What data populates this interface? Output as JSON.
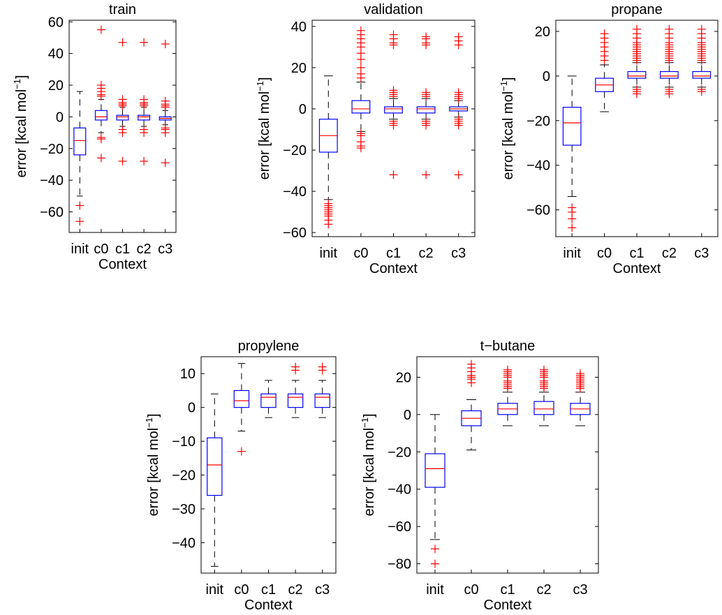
{
  "chart_data": [
    {
      "type": "boxplot",
      "title": "train",
      "xlabel": "Context",
      "ylabel": "error [kcal mol",
      "ylabel_superscript": "−1",
      "ylabel_suffix": "]",
      "categories": [
        "init",
        "c0",
        "c1",
        "c2",
        "c3"
      ],
      "ylim": [
        -73,
        61
      ],
      "yticks": [
        -60,
        -40,
        -20,
        0,
        20,
        40,
        60
      ],
      "ytick_labels": [
        "−60",
        "−40",
        "−20",
        "0",
        "20",
        "40",
        "60"
      ],
      "boxes": [
        {
          "q1": -24,
          "median": -15,
          "q3": -7,
          "whisker_low": -50,
          "whisker_high": 16,
          "outliers": [
            -56,
            -66
          ]
        },
        {
          "q1": -2,
          "median": 0,
          "q3": 4,
          "whisker_low": -10,
          "whisker_high": 11,
          "outliers": [
            55,
            20,
            18,
            16,
            14,
            13,
            -13,
            -14,
            -26
          ]
        },
        {
          "q1": -2,
          "median": 0,
          "q3": 1,
          "whisker_low": -6,
          "whisker_high": 6,
          "outliers": [
            47,
            11,
            9,
            8,
            7,
            -8,
            -10,
            -28
          ]
        },
        {
          "q1": -2,
          "median": 0,
          "q3": 1,
          "whisker_low": -6,
          "whisker_high": 6,
          "outliers": [
            47,
            11,
            9,
            8,
            7,
            -8,
            -10,
            -28
          ]
        },
        {
          "q1": -2,
          "median": -1,
          "q3": 0,
          "whisker_low": -5,
          "whisker_high": 4,
          "outliers": [
            46,
            10,
            8,
            7,
            6,
            -7,
            -8,
            -10,
            -29
          ]
        }
      ]
    },
    {
      "type": "boxplot",
      "title": "validation",
      "xlabel": "Context",
      "ylabel": "error [kcal mol",
      "ylabel_superscript": "−1",
      "ylabel_suffix": "]",
      "categories": [
        "init",
        "c0",
        "c1",
        "c2",
        "c3"
      ],
      "ylim": [
        -62,
        43
      ],
      "yticks": [
        -60,
        -40,
        -20,
        0,
        20,
        40
      ],
      "ytick_labels": [
        "−60",
        "−40",
        "−20",
        "0",
        "20",
        "40"
      ],
      "boxes": [
        {
          "q1": -21,
          "median": -13,
          "q3": -5,
          "whisker_low": -44,
          "whisker_high": 16,
          "outliers": [
            -46,
            -47,
            -48,
            -49,
            -50,
            -51,
            -52,
            -54,
            -56
          ]
        },
        {
          "q1": -2,
          "median": 0,
          "q3": 4,
          "whisker_low": -11,
          "whisker_high": 13,
          "outliers": [
            38,
            36,
            34,
            32,
            30,
            27,
            24,
            20,
            17,
            15,
            -12,
            -13,
            -16,
            -18,
            -19
          ]
        },
        {
          "q1": -2,
          "median": 0,
          "q3": 1,
          "whisker_low": -5,
          "whisker_high": 5,
          "outliers": [
            36,
            34,
            32,
            31,
            9,
            8,
            7,
            6,
            -6,
            -7,
            -8,
            -32
          ]
        },
        {
          "q1": -2,
          "median": 0,
          "q3": 1,
          "whisker_low": -5,
          "whisker_high": 5,
          "outliers": [
            35,
            34,
            32,
            31,
            8,
            7,
            6,
            -6,
            -7,
            -8,
            -32
          ]
        },
        {
          "q1": -1,
          "median": 0,
          "q3": 1,
          "whisker_low": -4,
          "whisker_high": 4,
          "outliers": [
            35,
            33,
            31,
            8,
            7,
            6,
            5,
            -5,
            -6,
            -7,
            -8,
            -32
          ]
        }
      ]
    },
    {
      "type": "boxplot",
      "title": "propane",
      "xlabel": "Context",
      "ylabel": "error [kcal mol",
      "ylabel_superscript": "−1",
      "ylabel_suffix": "]",
      "categories": [
        "init",
        "c0",
        "c1",
        "c2",
        "c3"
      ],
      "ylim": [
        -72,
        25
      ],
      "yticks": [
        -60,
        -40,
        -20,
        0,
        20
      ],
      "ytick_labels": [
        "−60",
        "−40",
        "−20",
        "0",
        "20"
      ],
      "boxes": [
        {
          "q1": -31,
          "median": -21,
          "q3": -14,
          "whisker_low": -54,
          "whisker_high": 0,
          "outliers": [
            -59,
            -61,
            -64,
            -68
          ]
        },
        {
          "q1": -7,
          "median": -4,
          "q3": -1,
          "whisker_low": -16,
          "whisker_high": 5,
          "outliers": [
            19,
            17,
            15,
            13,
            11,
            9,
            7
          ]
        },
        {
          "q1": -1,
          "median": 0,
          "q3": 2,
          "whisker_low": -5,
          "whisker_high": 6,
          "outliers": [
            21,
            19,
            17,
            15,
            14,
            13,
            12,
            11,
            10,
            9,
            8,
            7,
            -6,
            -7,
            -8
          ]
        },
        {
          "q1": -1,
          "median": 0,
          "q3": 2,
          "whisker_low": -5,
          "whisker_high": 6,
          "outliers": [
            21,
            19,
            17,
            15,
            14,
            13,
            12,
            11,
            10,
            9,
            8,
            7,
            -6,
            -7,
            -8
          ]
        },
        {
          "q1": -1,
          "median": 0,
          "q3": 2,
          "whisker_low": -5,
          "whisker_high": 6,
          "outliers": [
            21,
            19,
            17,
            15,
            14,
            13,
            12,
            11,
            10,
            9,
            8,
            7,
            -6,
            -7
          ]
        }
      ]
    },
    {
      "type": "boxplot",
      "title": "propylene",
      "xlabel": "Context",
      "ylabel": "error [kcal mol",
      "ylabel_superscript": "−1",
      "ylabel_suffix": "]",
      "categories": [
        "init",
        "c0",
        "c1",
        "c2",
        "c3"
      ],
      "ylim": [
        -49,
        15
      ],
      "yticks": [
        -40,
        -30,
        -20,
        -10,
        0,
        10
      ],
      "ytick_labels": [
        "−40",
        "−30",
        "−20",
        "−10",
        "0",
        "10"
      ],
      "boxes": [
        {
          "q1": -26,
          "median": -17,
          "q3": -9,
          "whisker_low": -47,
          "whisker_high": 4,
          "outliers": []
        },
        {
          "q1": 0,
          "median": 2,
          "q3": 5,
          "whisker_low": -7,
          "whisker_high": 13,
          "outliers": [
            -13
          ]
        },
        {
          "q1": 0,
          "median": 3,
          "q3": 4,
          "whisker_low": -3,
          "whisker_high": 8,
          "outliers": []
        },
        {
          "q1": 0,
          "median": 3,
          "q3": 4,
          "whisker_low": -3,
          "whisker_high": 8,
          "outliers": [
            11,
            12
          ]
        },
        {
          "q1": 0,
          "median": 3,
          "q3": 4,
          "whisker_low": -3,
          "whisker_high": 8,
          "outliers": [
            11,
            12
          ]
        }
      ]
    },
    {
      "type": "boxplot",
      "title": "t−butane",
      "xlabel": "Context",
      "ylabel": "error [kcal mol",
      "ylabel_superscript": "−1",
      "ylabel_suffix": "]",
      "categories": [
        "init",
        "c0",
        "c1",
        "c2",
        "c3"
      ],
      "ylim": [
        -85,
        31
      ],
      "yticks": [
        -80,
        -60,
        -40,
        -20,
        0,
        20
      ],
      "ytick_labels": [
        "−80",
        "−60",
        "−40",
        "−20",
        "0",
        "20"
      ],
      "boxes": [
        {
          "q1": -39,
          "median": -29,
          "q3": -21,
          "whisker_low": -67,
          "whisker_high": 0,
          "outliers": [
            -72,
            -80
          ]
        },
        {
          "q1": -6,
          "median": -2,
          "q3": 2,
          "whisker_low": -19,
          "whisker_high": 8,
          "outliers": [
            27,
            25,
            23,
            21,
            20,
            19,
            17
          ]
        },
        {
          "q1": 0,
          "median": 3,
          "q3": 6,
          "whisker_low": -6,
          "whisker_high": 12,
          "outliers": [
            24,
            23,
            22,
            21,
            20,
            18,
            17,
            16,
            15,
            14
          ]
        },
        {
          "q1": 0,
          "median": 3,
          "q3": 7,
          "whisker_low": -6,
          "whisker_high": 12,
          "outliers": [
            24,
            23,
            22,
            21,
            20,
            18,
            17,
            16,
            15,
            14
          ]
        },
        {
          "q1": 0,
          "median": 3,
          "q3": 6,
          "whisker_low": -6,
          "whisker_high": 12,
          "outliers": [
            22,
            21,
            20,
            19,
            18,
            17,
            16,
            15,
            14
          ]
        }
      ]
    }
  ],
  "colors": {
    "box": "#0000ff",
    "median": "#ff0000",
    "outlier": "#ff0000",
    "whisker": "#000000",
    "axis": "#000000"
  }
}
